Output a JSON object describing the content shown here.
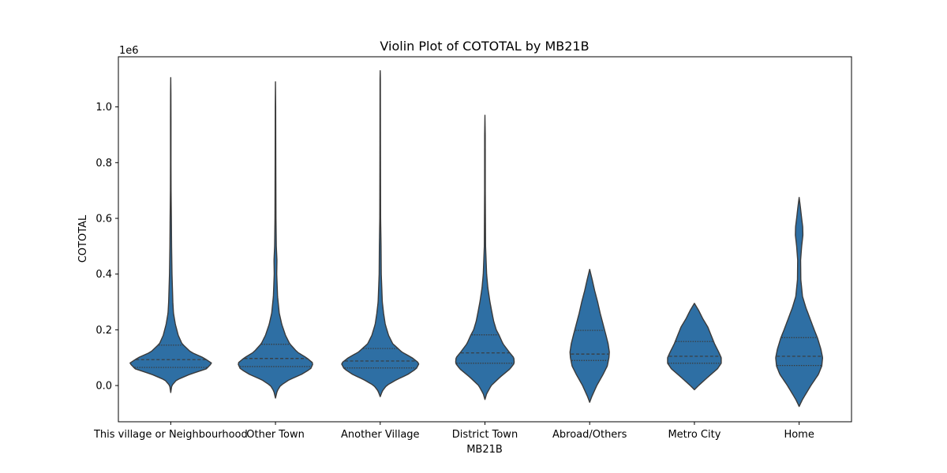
{
  "chart_data": {
    "type": "violin",
    "title": "Violin Plot of COTOTAL by MB21B",
    "xlabel": "MB21B",
    "ylabel": "COTOTAL",
    "y_offset_label": "1e6",
    "ylim": [
      -0.13,
      1.18
    ],
    "y_ticks": [
      0.0,
      0.2,
      0.4,
      0.6,
      0.8,
      1.0
    ],
    "y_tick_labels": [
      "0.0",
      "0.2",
      "0.4",
      "0.6",
      "0.8",
      "1.0"
    ],
    "grid": false,
    "legend": "none",
    "colors": {
      "fill": "#2e6fa4",
      "edge": "#3a3a3a",
      "frame": "#000000"
    },
    "categories": [
      "This village or Neighbourhood",
      "Other Town",
      "Another Village",
      "District Town",
      "Abroad/Others",
      "Metro City",
      "Home"
    ],
    "violins": [
      {
        "category": "This village or Neighbourhood",
        "quartiles": [
          0.065,
          0.093,
          0.145
        ],
        "profile": [
          [
            -0.025,
            0.0
          ],
          [
            0.0,
            0.025
          ],
          [
            0.02,
            0.14
          ],
          [
            0.04,
            0.45
          ],
          [
            0.06,
            0.85
          ],
          [
            0.08,
            0.98
          ],
          [
            0.1,
            0.78
          ],
          [
            0.12,
            0.48
          ],
          [
            0.15,
            0.27
          ],
          [
            0.18,
            0.18
          ],
          [
            0.22,
            0.11
          ],
          [
            0.26,
            0.065
          ],
          [
            0.3,
            0.05
          ],
          [
            0.4,
            0.03
          ],
          [
            0.5,
            0.02
          ],
          [
            0.6,
            0.015
          ],
          [
            0.7,
            0.008
          ],
          [
            0.8,
            0.006
          ],
          [
            0.95,
            0.006
          ],
          [
            1.05,
            0.004
          ],
          [
            1.105,
            0.0
          ]
        ]
      },
      {
        "category": "Other Town",
        "quartiles": [
          0.068,
          0.097,
          0.148
        ],
        "profile": [
          [
            -0.045,
            0.0
          ],
          [
            -0.02,
            0.04
          ],
          [
            0.0,
            0.12
          ],
          [
            0.02,
            0.32
          ],
          [
            0.04,
            0.62
          ],
          [
            0.06,
            0.84
          ],
          [
            0.08,
            0.9
          ],
          [
            0.1,
            0.74
          ],
          [
            0.12,
            0.52
          ],
          [
            0.15,
            0.34
          ],
          [
            0.18,
            0.24
          ],
          [
            0.22,
            0.15
          ],
          [
            0.26,
            0.09
          ],
          [
            0.32,
            0.05
          ],
          [
            0.4,
            0.03
          ],
          [
            0.45,
            0.035
          ],
          [
            0.5,
            0.02
          ],
          [
            0.6,
            0.012
          ],
          [
            0.8,
            0.008
          ],
          [
            1.0,
            0.005
          ],
          [
            1.09,
            0.0
          ]
        ]
      },
      {
        "category": "Another Village",
        "quartiles": [
          0.063,
          0.088,
          0.133
        ],
        "profile": [
          [
            -0.04,
            0.0
          ],
          [
            -0.02,
            0.05
          ],
          [
            0.0,
            0.15
          ],
          [
            0.02,
            0.38
          ],
          [
            0.04,
            0.66
          ],
          [
            0.06,
            0.86
          ],
          [
            0.08,
            0.93
          ],
          [
            0.1,
            0.76
          ],
          [
            0.12,
            0.52
          ],
          [
            0.15,
            0.3
          ],
          [
            0.18,
            0.2
          ],
          [
            0.22,
            0.12
          ],
          [
            0.26,
            0.08
          ],
          [
            0.3,
            0.05
          ],
          [
            0.4,
            0.025
          ],
          [
            0.5,
            0.02
          ],
          [
            0.6,
            0.01
          ],
          [
            0.8,
            0.007
          ],
          [
            1.0,
            0.005
          ],
          [
            1.1,
            0.004
          ],
          [
            1.13,
            0.0
          ]
        ]
      },
      {
        "category": "District Town",
        "quartiles": [
          0.08,
          0.117,
          0.182
        ],
        "profile": [
          [
            -0.05,
            0.0
          ],
          [
            -0.03,
            0.04
          ],
          [
            0.0,
            0.15
          ],
          [
            0.03,
            0.36
          ],
          [
            0.06,
            0.6
          ],
          [
            0.08,
            0.7
          ],
          [
            0.1,
            0.69
          ],
          [
            0.12,
            0.58
          ],
          [
            0.15,
            0.43
          ],
          [
            0.18,
            0.34
          ],
          [
            0.2,
            0.27
          ],
          [
            0.23,
            0.21
          ],
          [
            0.26,
            0.17
          ],
          [
            0.3,
            0.12
          ],
          [
            0.35,
            0.07
          ],
          [
            0.4,
            0.04
          ],
          [
            0.5,
            0.015
          ],
          [
            0.7,
            0.008
          ],
          [
            0.9,
            0.007
          ],
          [
            0.97,
            0.0
          ]
        ]
      },
      {
        "category": "Abroad/Others",
        "quartiles": [
          0.09,
          0.113,
          0.198
        ],
        "profile": [
          [
            -0.06,
            0.0
          ],
          [
            -0.04,
            0.05
          ],
          [
            0.0,
            0.17
          ],
          [
            0.04,
            0.32
          ],
          [
            0.07,
            0.42
          ],
          [
            0.1,
            0.46
          ],
          [
            0.12,
            0.47
          ],
          [
            0.15,
            0.44
          ],
          [
            0.18,
            0.39
          ],
          [
            0.22,
            0.32
          ],
          [
            0.26,
            0.25
          ],
          [
            0.3,
            0.19
          ],
          [
            0.34,
            0.12
          ],
          [
            0.38,
            0.06
          ],
          [
            0.417,
            0.0
          ]
        ]
      },
      {
        "category": "Metro City",
        "quartiles": [
          0.08,
          0.105,
          0.158
        ],
        "profile": [
          [
            -0.015,
            0.0
          ],
          [
            0.0,
            0.1
          ],
          [
            0.03,
            0.32
          ],
          [
            0.06,
            0.55
          ],
          [
            0.08,
            0.64
          ],
          [
            0.1,
            0.64
          ],
          [
            0.12,
            0.58
          ],
          [
            0.15,
            0.48
          ],
          [
            0.18,
            0.4
          ],
          [
            0.21,
            0.32
          ],
          [
            0.24,
            0.2
          ],
          [
            0.27,
            0.1
          ],
          [
            0.295,
            0.0
          ]
        ]
      },
      {
        "category": "Home",
        "quartiles": [
          0.072,
          0.105,
          0.172
        ],
        "profile": [
          [
            -0.075,
            0.0
          ],
          [
            -0.05,
            0.08
          ],
          [
            0.0,
            0.28
          ],
          [
            0.04,
            0.46
          ],
          [
            0.07,
            0.54
          ],
          [
            0.1,
            0.56
          ],
          [
            0.13,
            0.52
          ],
          [
            0.17,
            0.44
          ],
          [
            0.2,
            0.36
          ],
          [
            0.24,
            0.26
          ],
          [
            0.28,
            0.16
          ],
          [
            0.32,
            0.08
          ],
          [
            0.38,
            0.04
          ],
          [
            0.45,
            0.035
          ],
          [
            0.5,
            0.06
          ],
          [
            0.54,
            0.09
          ],
          [
            0.57,
            0.085
          ],
          [
            0.6,
            0.06
          ],
          [
            0.64,
            0.03
          ],
          [
            0.675,
            0.0
          ]
        ]
      }
    ]
  }
}
